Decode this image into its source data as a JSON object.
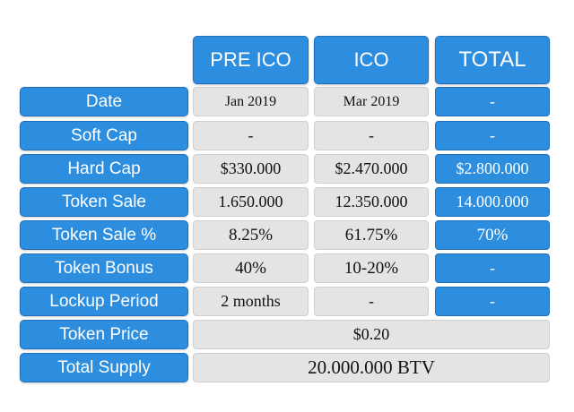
{
  "headers": {
    "pre_ico": "PRE ICO",
    "ico": "ICO",
    "total": "TOTAL"
  },
  "rows": [
    {
      "label": "Date",
      "pre_ico": "Jan 2019",
      "ico": "Mar 2019",
      "total": "-"
    },
    {
      "label": "Soft Cap",
      "pre_ico": "-",
      "ico": "-",
      "total": "-"
    },
    {
      "label": "Hard Cap",
      "pre_ico": "$330.000",
      "ico": "$2.470.000",
      "total": "$2.800.000"
    },
    {
      "label": "Token Sale",
      "pre_ico": "1.650.000",
      "ico": "12.350.000",
      "total": "14.000.000"
    },
    {
      "label": "Token Sale %",
      "pre_ico": "8.25%",
      "ico": "61.75%",
      "total": "70%"
    },
    {
      "label": "Token Bonus",
      "pre_ico": "40%",
      "ico": "10-20%",
      "total": "-"
    },
    {
      "label": "Lockup Period",
      "pre_ico": "2 months",
      "ico": "-",
      "total": "-"
    }
  ],
  "merged_rows": [
    {
      "label": "Token Price",
      "value": "$0.20"
    },
    {
      "label": "Total Supply",
      "value": "20.000.000 BTV"
    }
  ]
}
